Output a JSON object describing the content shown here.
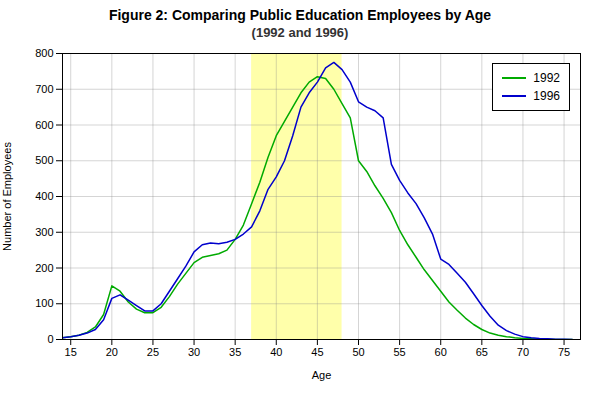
{
  "chart_data": {
    "type": "line",
    "title": "Figure 2:  Comparing Public Education Employees by Age",
    "subtitle": "(1992 and 1996)",
    "xlabel": "Age",
    "ylabel": "Number of Employees",
    "x": [
      14,
      15,
      16,
      17,
      18,
      19,
      20,
      21,
      22,
      23,
      24,
      25,
      26,
      27,
      28,
      29,
      30,
      31,
      32,
      33,
      34,
      35,
      36,
      37,
      38,
      39,
      40,
      41,
      42,
      43,
      44,
      45,
      46,
      47,
      48,
      49,
      50,
      51,
      52,
      53,
      54,
      55,
      56,
      57,
      58,
      59,
      60,
      61,
      62,
      63,
      64,
      65,
      66,
      67,
      68,
      69,
      70,
      71,
      72,
      73,
      74,
      75,
      76
    ],
    "series": [
      {
        "name": "1992",
        "color": "#00AA00",
        "values": [
          5,
          8,
          12,
          20,
          35,
          70,
          150,
          135,
          105,
          85,
          75,
          75,
          90,
          120,
          155,
          185,
          215,
          230,
          235,
          240,
          250,
          280,
          320,
          380,
          440,
          510,
          570,
          610,
          650,
          690,
          720,
          735,
          730,
          700,
          660,
          620,
          500,
          470,
          430,
          395,
          355,
          305,
          265,
          230,
          195,
          165,
          135,
          105,
          82,
          60,
          42,
          28,
          18,
          12,
          8,
          5,
          3,
          2,
          1,
          1,
          0,
          0,
          0
        ]
      },
      {
        "name": "1996",
        "color": "#0000CC",
        "values": [
          5,
          8,
          12,
          18,
          28,
          55,
          115,
          125,
          110,
          95,
          80,
          80,
          100,
          135,
          170,
          205,
          245,
          265,
          270,
          268,
          272,
          280,
          295,
          315,
          360,
          420,
          455,
          500,
          570,
          650,
          690,
          720,
          760,
          775,
          755,
          720,
          665,
          650,
          640,
          620,
          490,
          445,
          410,
          380,
          340,
          295,
          225,
          210,
          185,
          160,
          128,
          95,
          65,
          40,
          25,
          15,
          8,
          5,
          3,
          2,
          1,
          1,
          0
        ]
      }
    ],
    "highlight_x": [
      37,
      48
    ],
    "highlight_color": "#FFFFAA",
    "xlim": [
      14,
      77
    ],
    "ylim": [
      0,
      800
    ],
    "xticks": [
      15,
      20,
      25,
      30,
      35,
      40,
      45,
      50,
      55,
      60,
      65,
      70,
      75
    ],
    "yticks": [
      0,
      100,
      200,
      300,
      400,
      500,
      600,
      700,
      800
    ],
    "grid": true,
    "legend": "upper right"
  }
}
